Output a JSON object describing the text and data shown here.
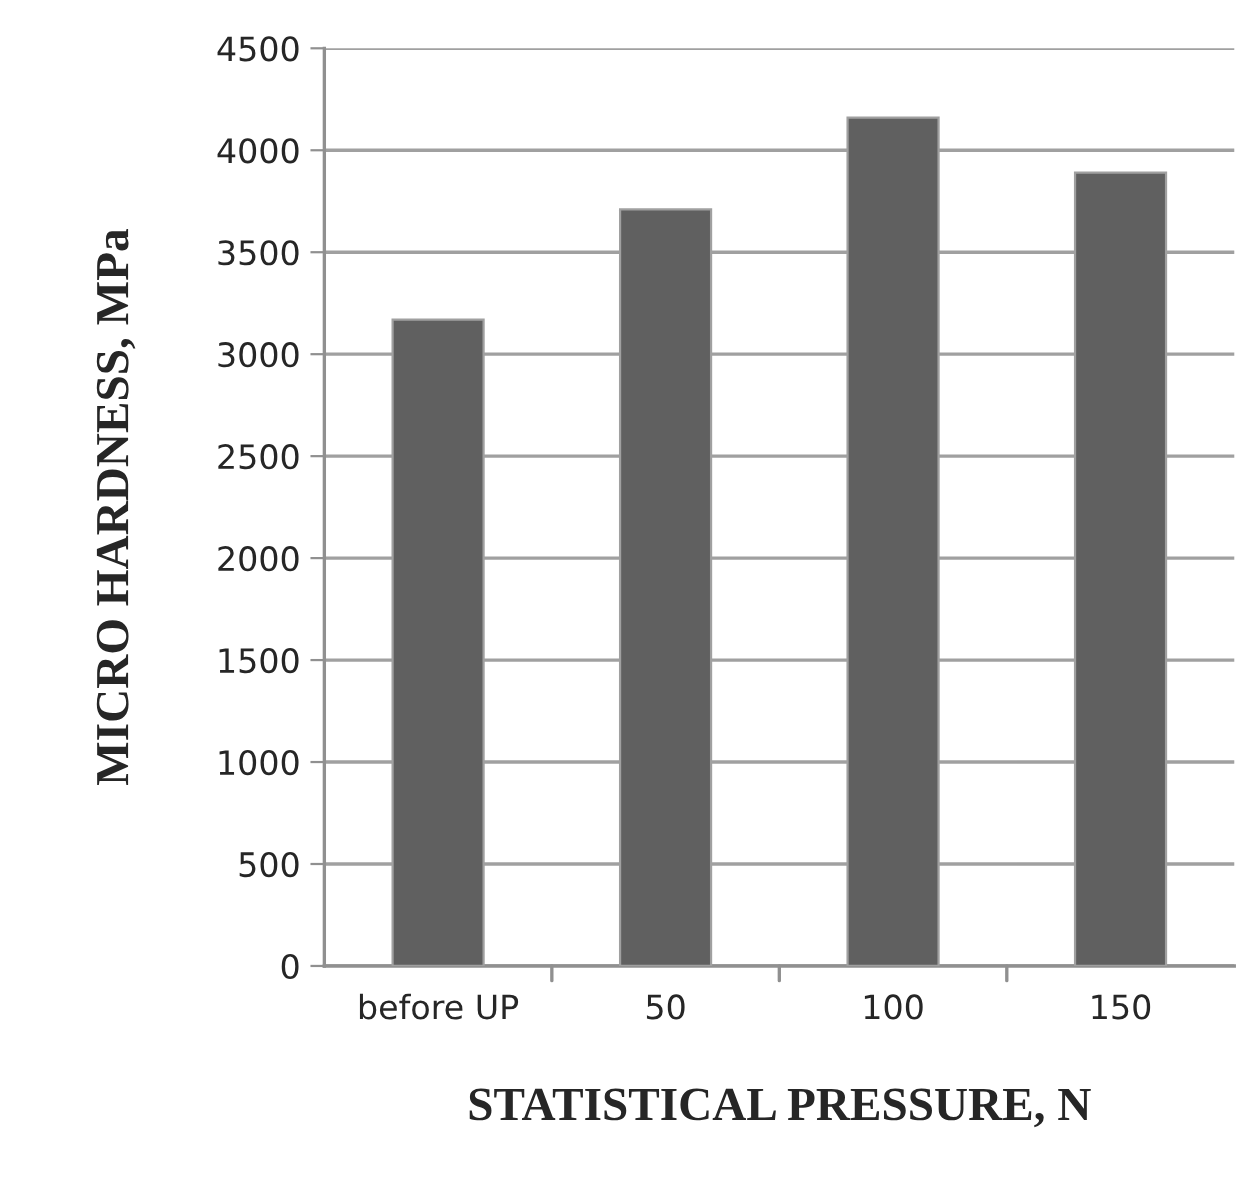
{
  "chart_data": {
    "type": "bar",
    "xlabel": "STATISTICAL PRESSURE, N",
    "ylabel": "MICRO HARDNESS, MPa",
    "categories": [
      "before UP",
      "50",
      "100",
      "150"
    ],
    "values": [
      3170,
      3710,
      4160,
      3890
    ],
    "color": "#606060",
    "ylim": [
      0,
      4500
    ],
    "yticks": [
      0,
      500,
      1000,
      1500,
      2000,
      2500,
      3000,
      3500,
      4000,
      4500
    ],
    "grid": "y",
    "legend": false
  }
}
